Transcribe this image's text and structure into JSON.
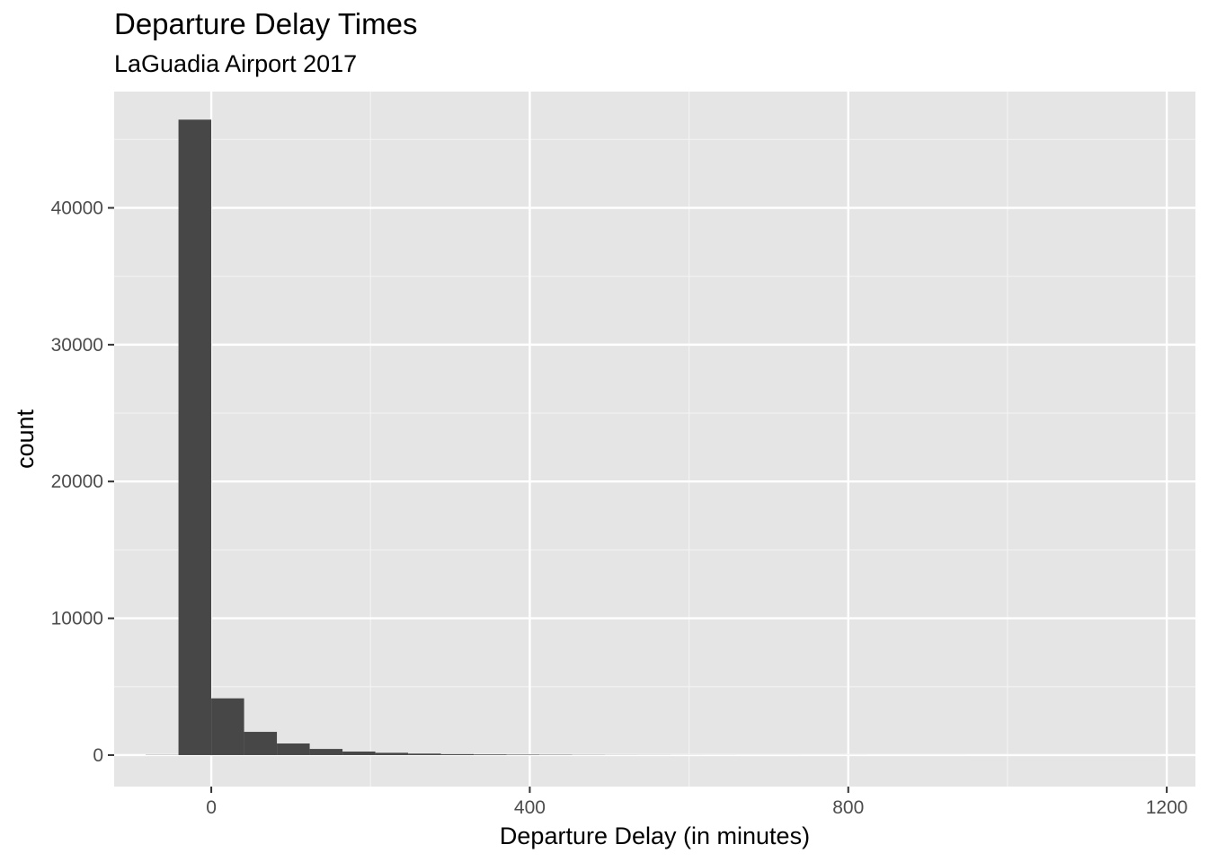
{
  "chart_data": {
    "type": "bar",
    "title": "Departure Delay Times",
    "subtitle": "LaGuadia Airport 2017",
    "xlabel": "Departure Delay (in minutes)",
    "ylabel": "count",
    "xlim": [
      -122,
      1236
    ],
    "ylim": [
      -2300,
      48500
    ],
    "x_ticks": [
      0,
      400,
      800,
      1200
    ],
    "y_ticks": [
      0,
      10000,
      20000,
      30000,
      40000
    ],
    "x_tick_labels": [
      "0",
      "400",
      "800",
      "1200"
    ],
    "y_tick_labels": [
      "0",
      "10000",
      "20000",
      "30000",
      "40000"
    ],
    "grid": true,
    "legend": "none",
    "bin_width": 41.2,
    "bins": [
      {
        "x0": -82.4,
        "x1": -41.2,
        "count": 15
      },
      {
        "x0": -41.2,
        "x1": 0.0,
        "count": 46450
      },
      {
        "x0": 0.0,
        "x1": 41.2,
        "count": 4150
      },
      {
        "x0": 41.2,
        "x1": 82.4,
        "count": 1700
      },
      {
        "x0": 82.4,
        "x1": 123.6,
        "count": 850
      },
      {
        "x0": 123.6,
        "x1": 164.8,
        "count": 450
      },
      {
        "x0": 164.8,
        "x1": 206.0,
        "count": 260
      },
      {
        "x0": 206.0,
        "x1": 247.2,
        "count": 170
      },
      {
        "x0": 247.2,
        "x1": 288.4,
        "count": 110
      },
      {
        "x0": 288.4,
        "x1": 329.6,
        "count": 70
      },
      {
        "x0": 329.6,
        "x1": 370.8,
        "count": 50
      },
      {
        "x0": 370.8,
        "x1": 412.0,
        "count": 35
      },
      {
        "x0": 412.0,
        "x1": 453.2,
        "count": 25
      },
      {
        "x0": 453.2,
        "x1": 494.4,
        "count": 15
      },
      {
        "x0": 494.4,
        "x1": 535.6,
        "count": 10
      },
      {
        "x0": 535.6,
        "x1": 576.8,
        "count": 8
      },
      {
        "x0": 576.8,
        "x1": 618.0,
        "count": 6
      },
      {
        "x0": 618.0,
        "x1": 659.2,
        "count": 5
      },
      {
        "x0": 659.2,
        "x1": 700.4,
        "count": 4
      },
      {
        "x0": 700.4,
        "x1": 741.6,
        "count": 4
      },
      {
        "x0": 741.6,
        "x1": 782.8,
        "count": 3
      },
      {
        "x0": 782.8,
        "x1": 824.0,
        "count": 3
      },
      {
        "x0": 824.0,
        "x1": 865.2,
        "count": 2
      },
      {
        "x0": 865.2,
        "x1": 906.4,
        "count": 2
      },
      {
        "x0": 906.4,
        "x1": 947.6,
        "count": 2
      },
      {
        "x0": 947.6,
        "x1": 988.8,
        "count": 1
      },
      {
        "x0": 988.8,
        "x1": 1030.0,
        "count": 1
      },
      {
        "x0": 1030.0,
        "x1": 1071.2,
        "count": 1
      },
      {
        "x0": 1071.2,
        "x1": 1112.4,
        "count": 1
      },
      {
        "x0": 1112.4,
        "x1": 1153.6,
        "count": 1
      },
      {
        "x0": 1153.6,
        "x1": 1194.8,
        "count": 1
      }
    ],
    "colors": {
      "panel_background": "#e5e5e5",
      "grid_major": "#ffffff",
      "grid_minor": "#f2f2f2",
      "bar_fill": "#474747",
      "tick_label": "#4d4d4d",
      "tick_mark": "#333333",
      "text": "#000000"
    }
  }
}
